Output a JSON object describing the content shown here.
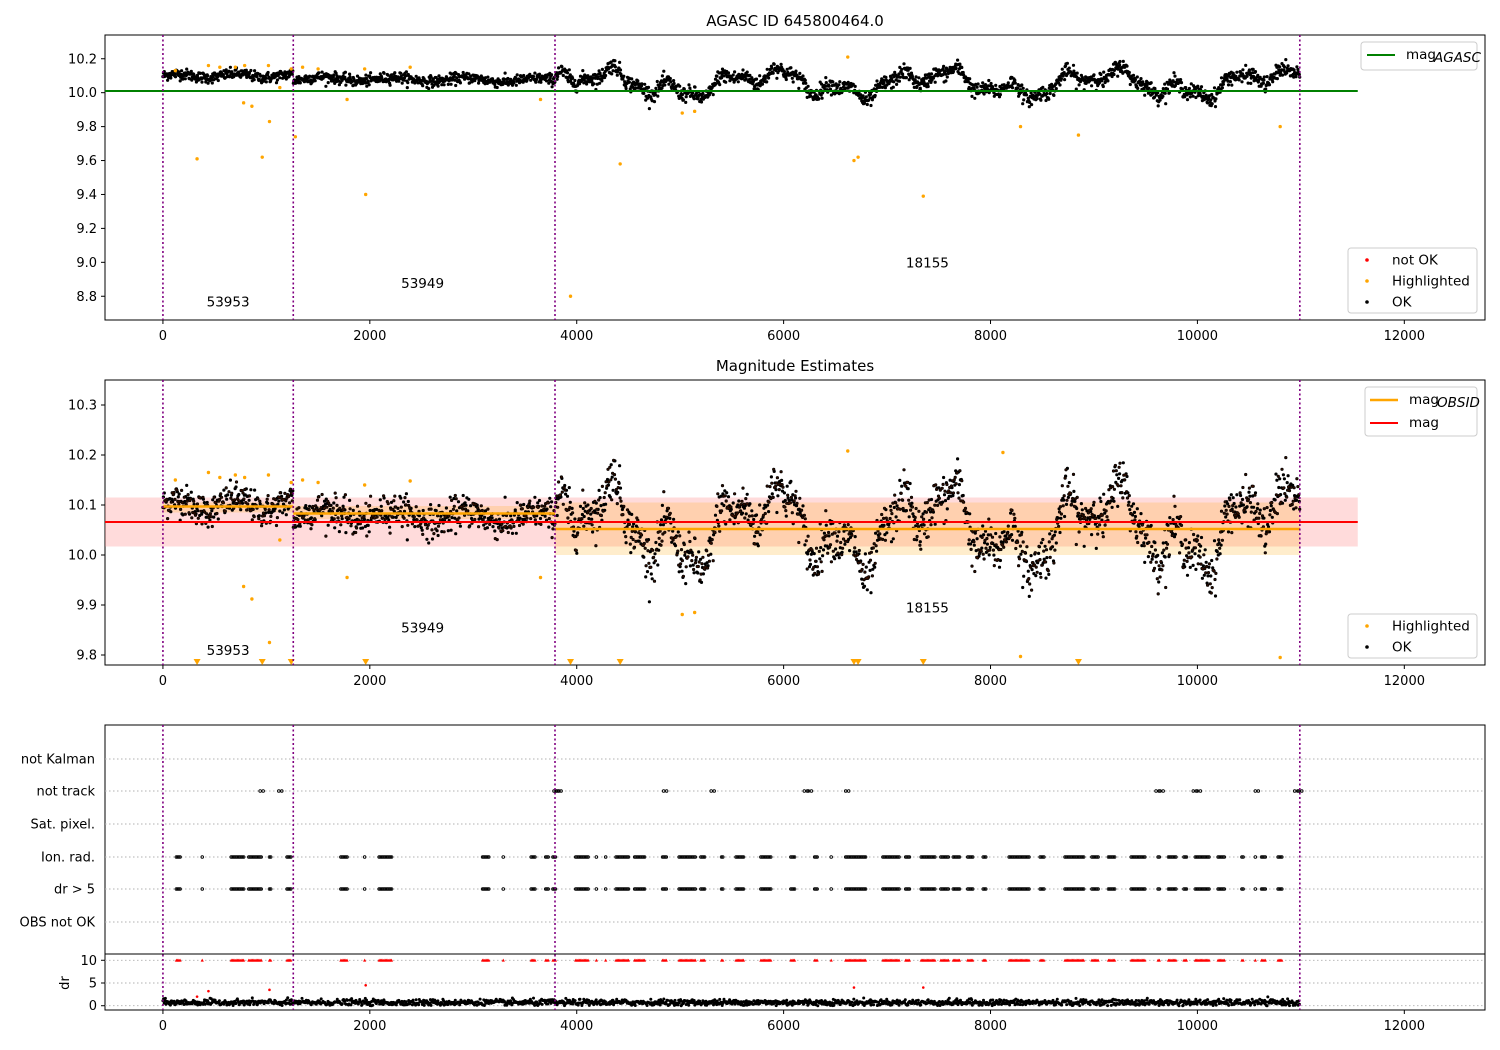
{
  "chart_data": [
    {
      "type": "scatter",
      "title": "AGASC ID 645800464.0",
      "xlim": [
        -560,
        12780
      ],
      "ylim": [
        8.66,
        10.34
      ],
      "xticks": [
        0,
        2000,
        4000,
        6000,
        8000,
        10000,
        12000
      ],
      "yticks": [
        8.8,
        9.0,
        9.2,
        9.4,
        9.6,
        9.8,
        10.0,
        10.2
      ],
      "obs_boundaries": [
        0,
        1260,
        3790,
        10990
      ],
      "obsids": [
        {
          "label": "53953",
          "x": 630,
          "y": 8.74
        },
        {
          "label": "53949",
          "x": 2510,
          "y": 8.85
        },
        {
          "label": "18155",
          "x": 7390,
          "y": 8.97
        }
      ],
      "lines": [
        {
          "name": "mag",
          "sub": "AGASC",
          "y": 10.01,
          "x": [
            -560,
            11550
          ],
          "color": "#008000"
        }
      ],
      "legend_lines": [
        {
          "name": "mag",
          "sub": "AGASC",
          "color": "#008000"
        }
      ],
      "legend_points": [
        {
          "name": "not OK",
          "color": "#ff0000"
        },
        {
          "name": "Highlighted",
          "color": "#ffa500"
        },
        {
          "name": "OK",
          "color": "#000000"
        }
      ],
      "highlighted": [
        [
          120,
          10.13
        ],
        [
          330,
          9.61
        ],
        [
          440,
          10.16
        ],
        [
          550,
          10.15
        ],
        [
          700,
          10.15
        ],
        [
          780,
          9.94
        ],
        [
          790,
          10.16
        ],
        [
          860,
          9.92
        ],
        [
          960,
          9.62
        ],
        [
          1020,
          10.16
        ],
        [
          1030,
          9.83
        ],
        [
          1130,
          10.03
        ],
        [
          1240,
          10.14
        ],
        [
          1280,
          9.74
        ],
        [
          1350,
          10.15
        ],
        [
          1500,
          10.14
        ],
        [
          1780,
          9.96
        ],
        [
          1950,
          10.14
        ],
        [
          1960,
          9.4
        ],
        [
          2390,
          10.15
        ],
        [
          3650,
          9.96
        ],
        [
          3940,
          8.8
        ],
        [
          4420,
          9.58
        ],
        [
          5020,
          9.88
        ],
        [
          5140,
          9.89
        ],
        [
          6620,
          10.21
        ],
        [
          6680,
          9.6
        ],
        [
          6720,
          9.62
        ],
        [
          7350,
          9.39
        ],
        [
          8290,
          9.8
        ],
        [
          8850,
          9.75
        ],
        [
          10800,
          9.8
        ]
      ]
    },
    {
      "type": "scatter",
      "title": "Magnitude Estimates",
      "xlim": [
        -560,
        12780
      ],
      "ylim": [
        9.78,
        10.35
      ],
      "xticks": [
        0,
        2000,
        4000,
        6000,
        8000,
        10000,
        12000
      ],
      "yticks": [
        9.8,
        9.9,
        10.0,
        10.1,
        10.2,
        10.3
      ],
      "obs_boundaries": [
        0,
        1260,
        3790,
        10990
      ],
      "obsids": [
        {
          "label": "53953",
          "x": 630,
          "y": 9.8
        },
        {
          "label": "53949",
          "x": 2510,
          "y": 9.845
        },
        {
          "label": "18155",
          "x": 7390,
          "y": 9.885
        }
      ],
      "mag_band": {
        "y0": 10.017,
        "y1": 10.115,
        "x": [
          -560,
          11550
        ],
        "color": "#ff9999"
      },
      "obsid_bands": [
        {
          "x": [
            0,
            1260
          ],
          "y0": 10.085,
          "y1": 10.105
        },
        {
          "x": [
            1260,
            3790
          ],
          "y0": 10.072,
          "y1": 10.098
        },
        {
          "x": [
            3790,
            10990
          ],
          "y0": 10.0,
          "y1": 10.105
        }
      ],
      "lines": [
        {
          "name": "mag",
          "sub": "OBSID",
          "segments": [
            [
              0,
              1260,
              10.097
            ],
            [
              1260,
              3790,
              10.083
            ],
            [
              3790,
              10990,
              10.052
            ]
          ],
          "color": "#ffa500"
        },
        {
          "name": "mag",
          "sub": "",
          "y": 10.066,
          "x": [
            -560,
            11550
          ],
          "color": "#ff0000"
        }
      ],
      "legend_lines": [
        {
          "name": "mag",
          "sub": "OBSID",
          "color": "#ffa500"
        },
        {
          "name": "mag",
          "sub": "",
          "color": "#ff0000"
        }
      ],
      "legend_points": [
        {
          "name": "Highlighted",
          "color": "#ffa500"
        },
        {
          "name": "OK",
          "color": "#000000"
        }
      ],
      "highlighted": [
        [
          120,
          10.15
        ],
        [
          440,
          10.165
        ],
        [
          550,
          10.155
        ],
        [
          700,
          10.16
        ],
        [
          790,
          10.155
        ],
        [
          1020,
          10.16
        ],
        [
          1130,
          10.03
        ],
        [
          1240,
          10.145
        ],
        [
          1350,
          10.15
        ],
        [
          1500,
          10.145
        ],
        [
          1780,
          9.955
        ],
        [
          1950,
          10.14
        ],
        [
          2390,
          10.148
        ],
        [
          3650,
          9.955
        ],
        [
          5020,
          9.881
        ],
        [
          5140,
          9.885
        ],
        [
          6620,
          10.208
        ],
        [
          8120,
          10.205
        ],
        [
          8290,
          9.797
        ],
        [
          10800,
          9.795
        ],
        [
          780,
          9.937
        ],
        [
          860,
          9.912
        ],
        [
          1030,
          9.825
        ]
      ],
      "clipped": [
        330,
        960,
        1240,
        1960,
        3940,
        4420,
        6680,
        6720,
        7350,
        8850
      ]
    },
    {
      "type": "scatter",
      "title": "",
      "xlim": [
        -560,
        12780
      ],
      "xticks": [
        0,
        2000,
        4000,
        6000,
        8000,
        10000,
        12000
      ],
      "obs_boundaries": [
        0,
        1260,
        3790,
        10990
      ],
      "flag_rows": [
        "not Kalman",
        "not track",
        "Sat. pixel.",
        "Ion. rad.",
        "dr > 5",
        "OBS not OK"
      ],
      "dr": {
        "ylabel": "dr",
        "ylim": [
          -0.5,
          10.5
        ],
        "yticks": [
          0,
          5,
          10
        ]
      },
      "not_track": [
        940,
        1120,
        3780,
        3800,
        3820,
        4840,
        5300,
        6200,
        6240,
        6600,
        9600,
        9640,
        9960,
        10000,
        10560,
        10940,
        10980
      ],
      "flag_clusters": [
        [
          130,
          170
        ],
        [
          380,
          380
        ],
        [
          660,
          780
        ],
        [
          830,
          950
        ],
        [
          1030,
          1050
        ],
        [
          1200,
          1240
        ],
        [
          1720,
          1790
        ],
        [
          1950,
          1950
        ],
        [
          2090,
          2210
        ],
        [
          3090,
          3150
        ],
        [
          3290,
          3290
        ],
        [
          3560,
          3600
        ],
        [
          3700,
          3730
        ],
        [
          3770,
          3800
        ],
        [
          3990,
          4110
        ],
        [
          4190,
          4190
        ],
        [
          4280,
          4290
        ],
        [
          4380,
          4500
        ],
        [
          4560,
          4660
        ],
        [
          4830,
          4870
        ],
        [
          4990,
          5150
        ],
        [
          5200,
          5240
        ],
        [
          5400,
          5420
        ],
        [
          5540,
          5620
        ],
        [
          5780,
          5880
        ],
        [
          6070,
          6110
        ],
        [
          6300,
          6330
        ],
        [
          6460,
          6460
        ],
        [
          6600,
          6800
        ],
        [
          6960,
          7120
        ],
        [
          7180,
          7220
        ],
        [
          7330,
          7470
        ],
        [
          7520,
          7600
        ],
        [
          7640,
          7700
        ],
        [
          7780,
          7830
        ],
        [
          7930,
          7960
        ],
        [
          8180,
          8380
        ],
        [
          8480,
          8520
        ],
        [
          8720,
          8900
        ],
        [
          8980,
          9050
        ],
        [
          9140,
          9200
        ],
        [
          9360,
          9500
        ],
        [
          9620,
          9640
        ],
        [
          9720,
          9800
        ],
        [
          9870,
          9900
        ],
        [
          9980,
          10120
        ],
        [
          10200,
          10260
        ],
        [
          10430,
          10450
        ],
        [
          10560,
          10560
        ],
        [
          10620,
          10660
        ],
        [
          10780,
          10820
        ]
      ],
      "dr_outliers": [
        [
          330,
          2.0
        ],
        [
          440,
          3.2
        ],
        [
          1030,
          3.5
        ],
        [
          1960,
          4.5
        ],
        [
          6680,
          4.0
        ],
        [
          7350,
          4.0
        ]
      ]
    }
  ]
}
